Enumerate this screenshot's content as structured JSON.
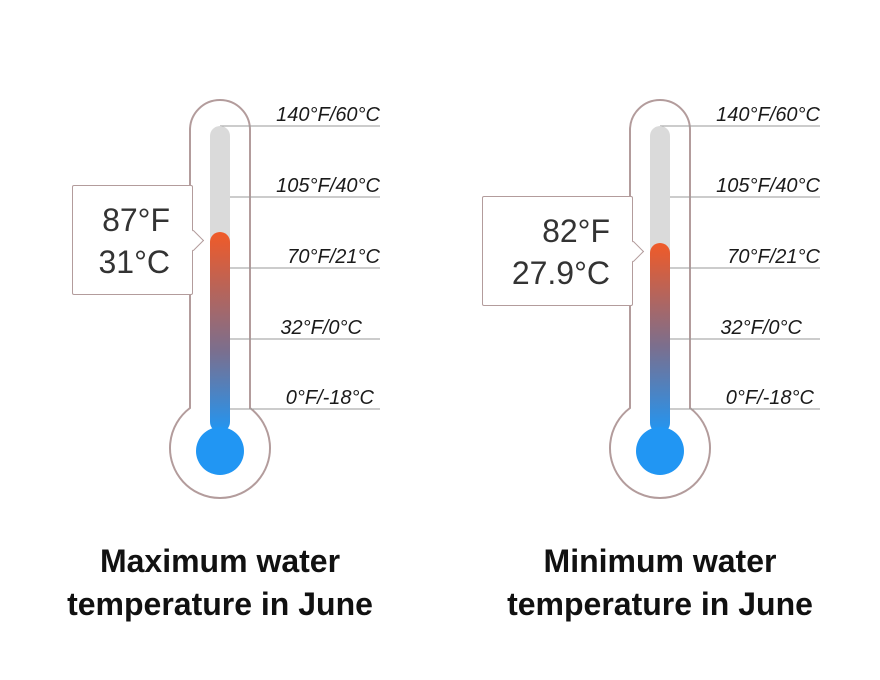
{
  "scale_labels": [
    "140°F/60°C",
    "105°F/40°C",
    "70°F/21°C",
    "32°F/0°C",
    "0°F/-18°C"
  ],
  "colors": {
    "outline": "#b39c9c",
    "tube_empty": "#dadada",
    "hot": "#f05a28",
    "cold": "#2196f3",
    "tick_line": "#9a9a9a"
  },
  "thermometers": [
    {
      "fahrenheit": "87°F",
      "celsius": "31°C",
      "caption_line1": "Maximum water",
      "caption_line2": "temperature in June",
      "reading_f": 87
    },
    {
      "fahrenheit": "82°F",
      "celsius": "27.9°C",
      "caption_line1": "Minimum water",
      "caption_line2": "temperature in June",
      "reading_f": 82
    }
  ]
}
